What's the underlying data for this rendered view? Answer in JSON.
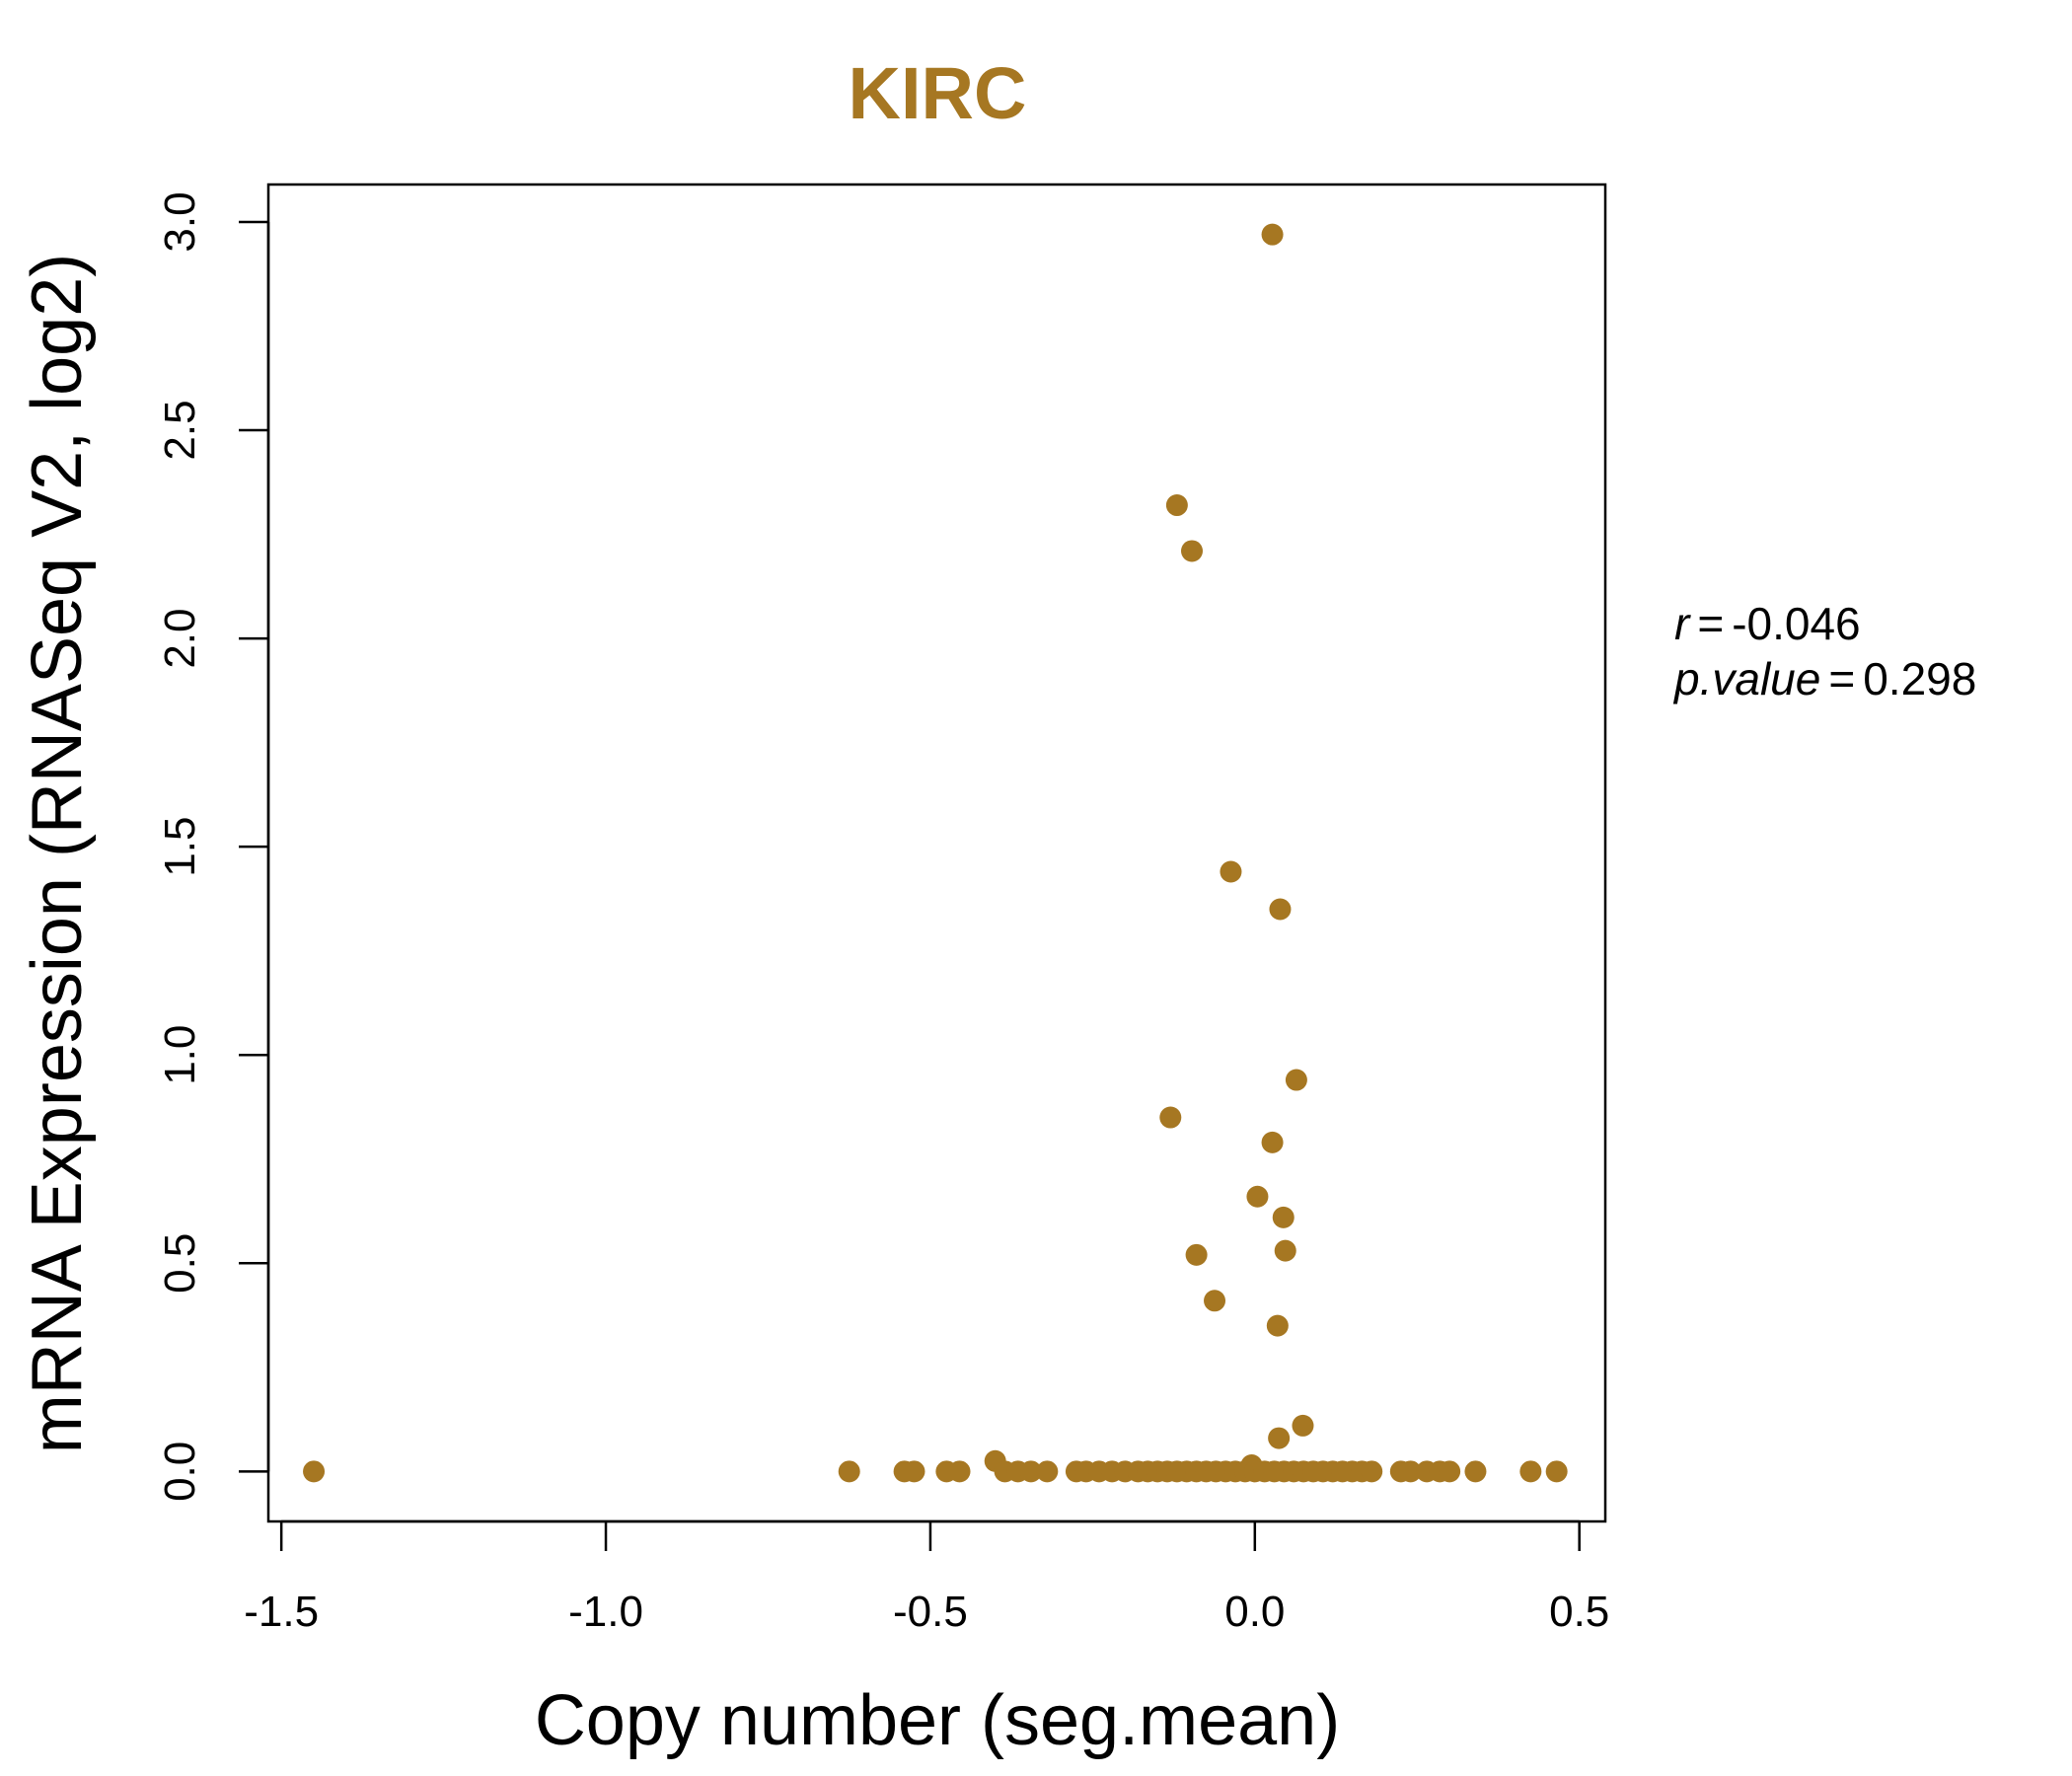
{
  "chart_data": {
    "type": "scatter",
    "title": "KIRC",
    "xlabel": "Copy number (seg.mean)",
    "ylabel": "mRNA Expression (RNASeq V2, log2)",
    "xlim": [
      -1.52,
      0.54
    ],
    "ylim": [
      -0.12,
      3.09
    ],
    "x_ticks": [
      "-1.5",
      "-1.0",
      "-0.5",
      "0.0",
      "0.5"
    ],
    "x_tick_values": [
      -1.5,
      -1.0,
      -0.5,
      0.0,
      0.5
    ],
    "y_ticks": [
      "0.0",
      "0.5",
      "1.0",
      "1.5",
      "2.0",
      "2.5",
      "3.0"
    ],
    "y_tick_values": [
      0.0,
      0.5,
      1.0,
      1.5,
      2.0,
      2.5,
      3.0
    ],
    "grid": false,
    "point_color": "#A67722",
    "title_color": "#A67722",
    "stats": {
      "r_label": "r",
      "r_value": "-0.046",
      "p_label": "p.value",
      "p_value": "0.298"
    },
    "series": [
      {
        "name": "samples",
        "points": [
          [
            0.027,
            2.97
          ],
          [
            -0.12,
            2.32
          ],
          [
            -0.097,
            2.21
          ],
          [
            -0.037,
            1.44
          ],
          [
            0.039,
            1.35
          ],
          [
            0.064,
            0.94
          ],
          [
            -0.13,
            0.85
          ],
          [
            0.027,
            0.79
          ],
          [
            0.004,
            0.66
          ],
          [
            0.044,
            0.61
          ],
          [
            0.047,
            0.53
          ],
          [
            -0.09,
            0.52
          ],
          [
            -0.062,
            0.41
          ],
          [
            0.035,
            0.35
          ],
          [
            0.074,
            0.11
          ],
          [
            0.037,
            0.08
          ],
          [
            -0.4,
            0.025
          ],
          [
            -0.005,
            0.015
          ],
          [
            -1.45,
            0.0
          ],
          [
            -0.625,
            0.0
          ],
          [
            -0.54,
            0.0
          ],
          [
            -0.525,
            0.0
          ],
          [
            -0.475,
            0.0
          ],
          [
            -0.455,
            0.0
          ],
          [
            -0.385,
            0.0
          ],
          [
            -0.365,
            0.0
          ],
          [
            -0.345,
            0.0
          ],
          [
            -0.32,
            0.0
          ],
          [
            -0.275,
            0.0
          ],
          [
            -0.26,
            0.0
          ],
          [
            -0.24,
            0.0
          ],
          [
            -0.22,
            0.0
          ],
          [
            -0.2,
            0.0
          ],
          [
            -0.18,
            0.0
          ],
          [
            -0.165,
            0.0
          ],
          [
            -0.15,
            0.0
          ],
          [
            -0.135,
            0.0
          ],
          [
            -0.12,
            0.0
          ],
          [
            -0.105,
            0.0
          ],
          [
            -0.09,
            0.0
          ],
          [
            -0.075,
            0.0
          ],
          [
            -0.06,
            0.0
          ],
          [
            -0.045,
            0.0
          ],
          [
            -0.03,
            0.0
          ],
          [
            -0.015,
            0.0
          ],
          [
            0.0,
            0.0
          ],
          [
            0.015,
            0.0
          ],
          [
            0.03,
            0.0
          ],
          [
            0.045,
            0.0
          ],
          [
            0.06,
            0.0
          ],
          [
            0.075,
            0.0
          ],
          [
            0.09,
            0.0
          ],
          [
            0.105,
            0.0
          ],
          [
            0.12,
            0.0
          ],
          [
            0.135,
            0.0
          ],
          [
            0.15,
            0.0
          ],
          [
            0.165,
            0.0
          ],
          [
            0.18,
            0.0
          ],
          [
            0.225,
            0.0
          ],
          [
            0.24,
            0.0
          ],
          [
            0.265,
            0.0
          ],
          [
            0.285,
            0.0
          ],
          [
            0.3,
            0.0
          ],
          [
            0.34,
            0.0
          ],
          [
            0.425,
            0.0
          ],
          [
            0.465,
            0.0
          ]
        ]
      }
    ]
  }
}
